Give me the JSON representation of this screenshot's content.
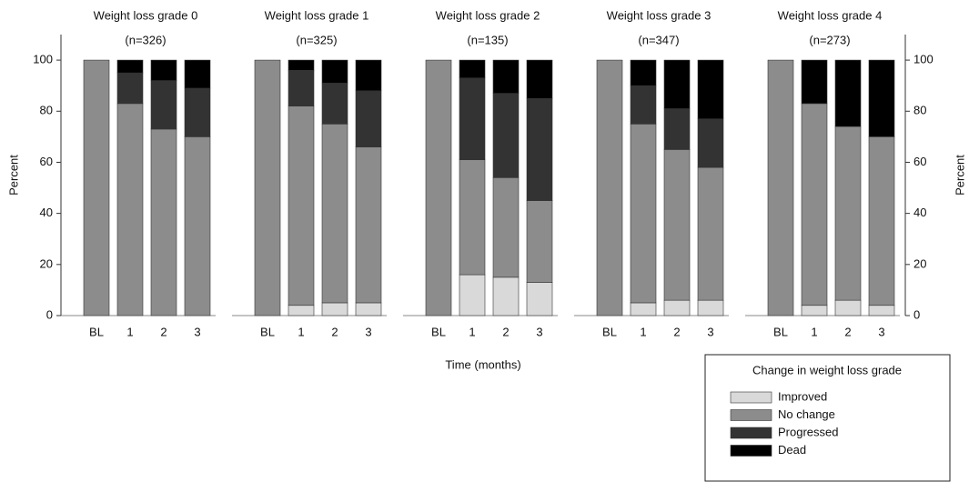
{
  "chart_data": [
    {
      "type": "bar",
      "stacked": true,
      "title": "Weight loss grade 0",
      "subtitle": "(n=326)",
      "ylabel": "Percent",
      "yaxis_position": "left",
      "categories": [
        "BL",
        "1",
        "2",
        "3"
      ],
      "series": [
        {
          "name": "Improved",
          "color": "#d9d9d9",
          "values": [
            0,
            0,
            0,
            0
          ]
        },
        {
          "name": "No change",
          "color": "#8c8c8c",
          "values": [
            100,
            83,
            73,
            70
          ]
        },
        {
          "name": "Progressed",
          "color": "#333333",
          "values": [
            0,
            12,
            19,
            19
          ]
        },
        {
          "name": "Dead",
          "color": "#000000",
          "values": [
            0,
            5,
            8,
            11
          ]
        }
      ],
      "ylim": [
        0,
        110
      ],
      "yticks": [
        0,
        20,
        40,
        60,
        80,
        100
      ]
    },
    {
      "type": "bar",
      "stacked": true,
      "title": "Weight loss grade 1",
      "subtitle": "(n=325)",
      "categories": [
        "BL",
        "1",
        "2",
        "3"
      ],
      "series": [
        {
          "name": "Improved",
          "color": "#d9d9d9",
          "values": [
            0,
            4,
            5,
            5
          ]
        },
        {
          "name": "No change",
          "color": "#8c8c8c",
          "values": [
            100,
            78,
            70,
            61
          ]
        },
        {
          "name": "Progressed",
          "color": "#333333",
          "values": [
            0,
            14,
            16,
            22
          ]
        },
        {
          "name": "Dead",
          "color": "#000000",
          "values": [
            0,
            4,
            9,
            12
          ]
        }
      ],
      "ylim": [
        0,
        110
      ]
    },
    {
      "type": "bar",
      "stacked": true,
      "title": "Weight loss grade  2",
      "subtitle": "(n=135)",
      "categories": [
        "BL",
        "1",
        "2",
        "3"
      ],
      "series": [
        {
          "name": "Improved",
          "color": "#d9d9d9",
          "values": [
            0,
            16,
            15,
            13
          ]
        },
        {
          "name": "No change",
          "color": "#8c8c8c",
          "values": [
            100,
            45,
            39,
            32
          ]
        },
        {
          "name": "Progressed",
          "color": "#333333",
          "values": [
            0,
            32,
            33,
            40
          ]
        },
        {
          "name": "Dead",
          "color": "#000000",
          "values": [
            0,
            7,
            13,
            15
          ]
        }
      ],
      "ylim": [
        0,
        110
      ]
    },
    {
      "type": "bar",
      "stacked": true,
      "title": "Weight loss grade 3",
      "subtitle": "(n=347)",
      "categories": [
        "BL",
        "1",
        "2",
        "3"
      ],
      "series": [
        {
          "name": "Improved",
          "color": "#d9d9d9",
          "values": [
            0,
            5,
            6,
            6
          ]
        },
        {
          "name": "No change",
          "color": "#8c8c8c",
          "values": [
            100,
            70,
            59,
            52
          ]
        },
        {
          "name": "Progressed",
          "color": "#333333",
          "values": [
            0,
            15,
            16,
            19
          ]
        },
        {
          "name": "Dead",
          "color": "#000000",
          "values": [
            0,
            10,
            19,
            23
          ]
        }
      ],
      "ylim": [
        0,
        110
      ]
    },
    {
      "type": "bar",
      "stacked": true,
      "title": "Weight loss grade 4",
      "subtitle": "(n=273)",
      "ylabel": "Percent",
      "yaxis_position": "right",
      "categories": [
        "BL",
        "1",
        "2",
        "3"
      ],
      "series": [
        {
          "name": "Improved",
          "color": "#d9d9d9",
          "values": [
            0,
            4,
            6,
            4
          ]
        },
        {
          "name": "No change",
          "color": "#8c8c8c",
          "values": [
            100,
            79,
            68,
            66
          ]
        },
        {
          "name": "Progressed",
          "color": "#333333",
          "values": [
            0,
            0,
            0,
            0
          ]
        },
        {
          "name": "Dead",
          "color": "#000000",
          "values": [
            0,
            17,
            26,
            30
          ]
        }
      ],
      "ylim": [
        0,
        110
      ],
      "yticks": [
        0,
        20,
        40,
        60,
        80,
        100
      ]
    }
  ],
  "xlabel": "Time (months)",
  "legend": {
    "title": "Change in weight loss grade",
    "position": "bottom right"
  }
}
